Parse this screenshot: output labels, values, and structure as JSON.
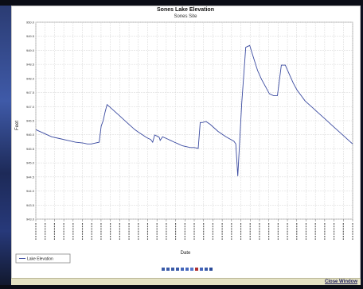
{
  "chart_data": {
    "type": "line",
    "title": "Sones Lake Elevation",
    "subtitle": "Sones Site",
    "xlabel": "Date",
    "ylabel": "Feet",
    "ylim": [
      0,
      11
    ],
    "y_ticks": [
      "950.0",
      "949.5",
      "949.0",
      "948.5",
      "948.0",
      "947.5",
      "947.0",
      "946.5",
      "946.0",
      "945.5",
      "945.0",
      "944.5",
      "944.0",
      "943.5",
      "943.0"
    ],
    "grid": true,
    "legend_position": "bottom-left",
    "series": [
      {
        "name": "Lake Elevation",
        "color": "#3a4aa0",
        "x": [
          0,
          2,
          4,
          6,
          8,
          10,
          12,
          13,
          14,
          16,
          16.5,
          17,
          17.5,
          18,
          19,
          20,
          21,
          22,
          23,
          24,
          25,
          26,
          27,
          28,
          29,
          29.5,
          30,
          31,
          31.2,
          31.4,
          32,
          33,
          34,
          35,
          36,
          37,
          38,
          39,
          40,
          41,
          41.5,
          42,
          43,
          44,
          45,
          46,
          48,
          50,
          50.5,
          51,
          52,
          53,
          54,
          55,
          56,
          57,
          58,
          58.5,
          59,
          60,
          61,
          62,
          63,
          64,
          65,
          66,
          67,
          68,
          69,
          70,
          71,
          72,
          73,
          74,
          75,
          76,
          77,
          78,
          79,
          80
        ],
        "y": [
          5.0,
          4.8,
          4.6,
          4.5,
          4.4,
          4.3,
          4.25,
          4.2,
          4.2,
          4.3,
          5.2,
          5.5,
          6.0,
          6.4,
          6.2,
          6.0,
          5.8,
          5.6,
          5.4,
          5.2,
          5.0,
          4.85,
          4.7,
          4.55,
          4.45,
          4.3,
          4.7,
          4.6,
          4.55,
          4.4,
          4.6,
          4.5,
          4.4,
          4.3,
          4.2,
          4.1,
          4.05,
          4.0,
          4.0,
          3.95,
          5.4,
          5.4,
          5.45,
          5.3,
          5.1,
          4.9,
          4.6,
          4.35,
          4.2,
          2.4,
          6.5,
          9.6,
          9.7,
          9.0,
          8.3,
          7.8,
          7.4,
          7.2,
          7.0,
          6.9,
          6.9,
          8.6,
          8.6,
          8.1,
          7.6,
          7.2,
          6.9,
          6.6,
          6.4,
          6.2,
          6.0,
          5.8,
          5.6,
          5.4,
          5.2,
          5.0,
          4.8,
          4.6,
          4.4,
          4.2
        ]
      }
    ]
  }
}
